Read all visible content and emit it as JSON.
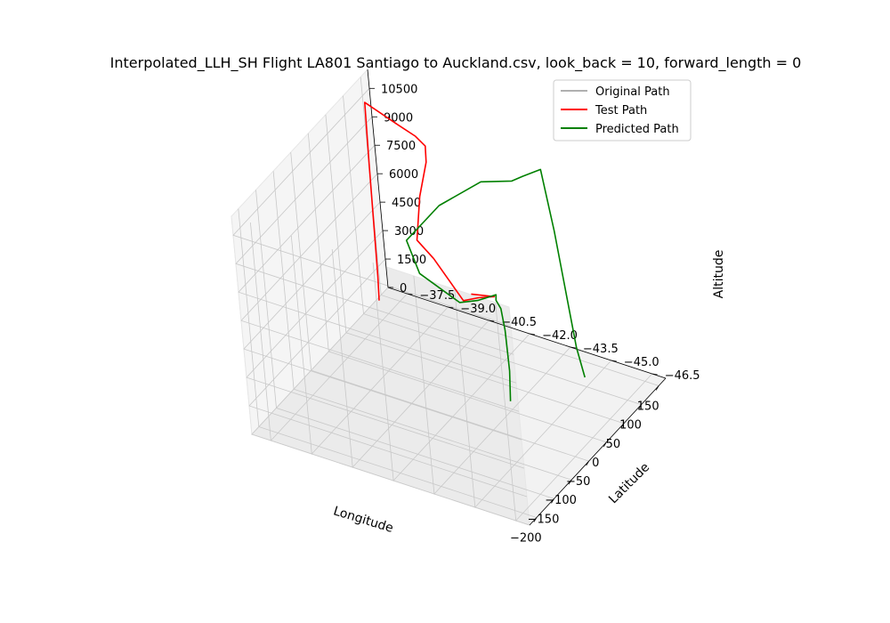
{
  "chart_data": {
    "type": "line",
    "projection": "3d",
    "title": "Interpolated_LLH_SH Flight LA801 Santiago to Auckland.csv, look_back = 10, forward_length = 0",
    "xlabel": "Longitude",
    "ylabel": "Latitude",
    "zlabel": "Altitude",
    "x_ticks": [
      "−200",
      "−150",
      "−100",
      "−50",
      "0",
      "50",
      "100",
      "150"
    ],
    "y_ticks": [
      "−46.5",
      "−45.0",
      "−43.5",
      "−42.0",
      "−40.5",
      "−39.0",
      "−37.5"
    ],
    "z_ticks": [
      "0",
      "1500",
      "3000",
      "4500",
      "6000",
      "7500",
      "9000",
      "10500"
    ],
    "xlim": [
      -220,
      170
    ],
    "ylim": [
      -47.0,
      -36.8
    ],
    "zlim": [
      0,
      11500
    ],
    "grid": true,
    "legend_position": "upper right",
    "legend": [
      {
        "label": "Original Path",
        "color": "#b0b0b0"
      },
      {
        "label": "Test Path",
        "color": "#ff0000"
      },
      {
        "label": "Predicted Path",
        "color": "#008000"
      }
    ],
    "series": [
      {
        "name": "Test Path",
        "color": "#ff0000",
        "points": [
          [
            130,
            -37.0,
            200
          ],
          [
            129,
            -37.05,
            1500
          ],
          [
            128,
            -37.1,
            4500
          ],
          [
            127,
            -37.15,
            7500
          ],
          [
            127,
            -37.2,
            10800
          ],
          [
            123,
            -38.4,
            10300
          ],
          [
            120,
            -39.1,
            10050
          ],
          [
            116,
            -39.5,
            9800
          ],
          [
            80,
            -40.0,
            9900
          ],
          [
            0,
            -40.8,
            10050
          ],
          [
            -100,
            -42.0,
            10300
          ],
          [
            -130,
            -43.0,
            10400
          ],
          [
            -200,
            -45.0,
            10500
          ],
          [
            -180,
            -45.3,
            10400
          ],
          [
            -160,
            -45.6,
            10200
          ],
          [
            -185,
            -45.1,
            10600
          ]
        ]
      },
      {
        "name": "Predicted Path",
        "color": "#008000",
        "points": [
          [
            118,
            -44.7,
            0
          ],
          [
            117,
            -44.5,
            1500
          ],
          [
            116,
            -44.3,
            4500
          ],
          [
            115,
            -44.1,
            7500
          ],
          [
            115,
            -43.8,
            10600
          ],
          [
            108,
            -43.2,
            10100
          ],
          [
            106,
            -42.8,
            9700
          ],
          [
            80,
            -42.0,
            9800
          ],
          [
            0,
            -41.5,
            9900
          ],
          [
            -100,
            -41.6,
            10100
          ],
          [
            -170,
            -43.0,
            10400
          ],
          [
            -210,
            -45.0,
            10600
          ],
          [
            -190,
            -45.4,
            10500
          ],
          [
            -155,
            -45.6,
            10200
          ],
          [
            -170,
            -45.8,
            10300
          ],
          [
            -180,
            -46.1,
            10200
          ],
          [
            -195,
            -46.4,
            9500
          ],
          [
            -200,
            -46.5,
            7500
          ],
          [
            -205,
            -46.5,
            6000
          ]
        ]
      }
    ]
  }
}
